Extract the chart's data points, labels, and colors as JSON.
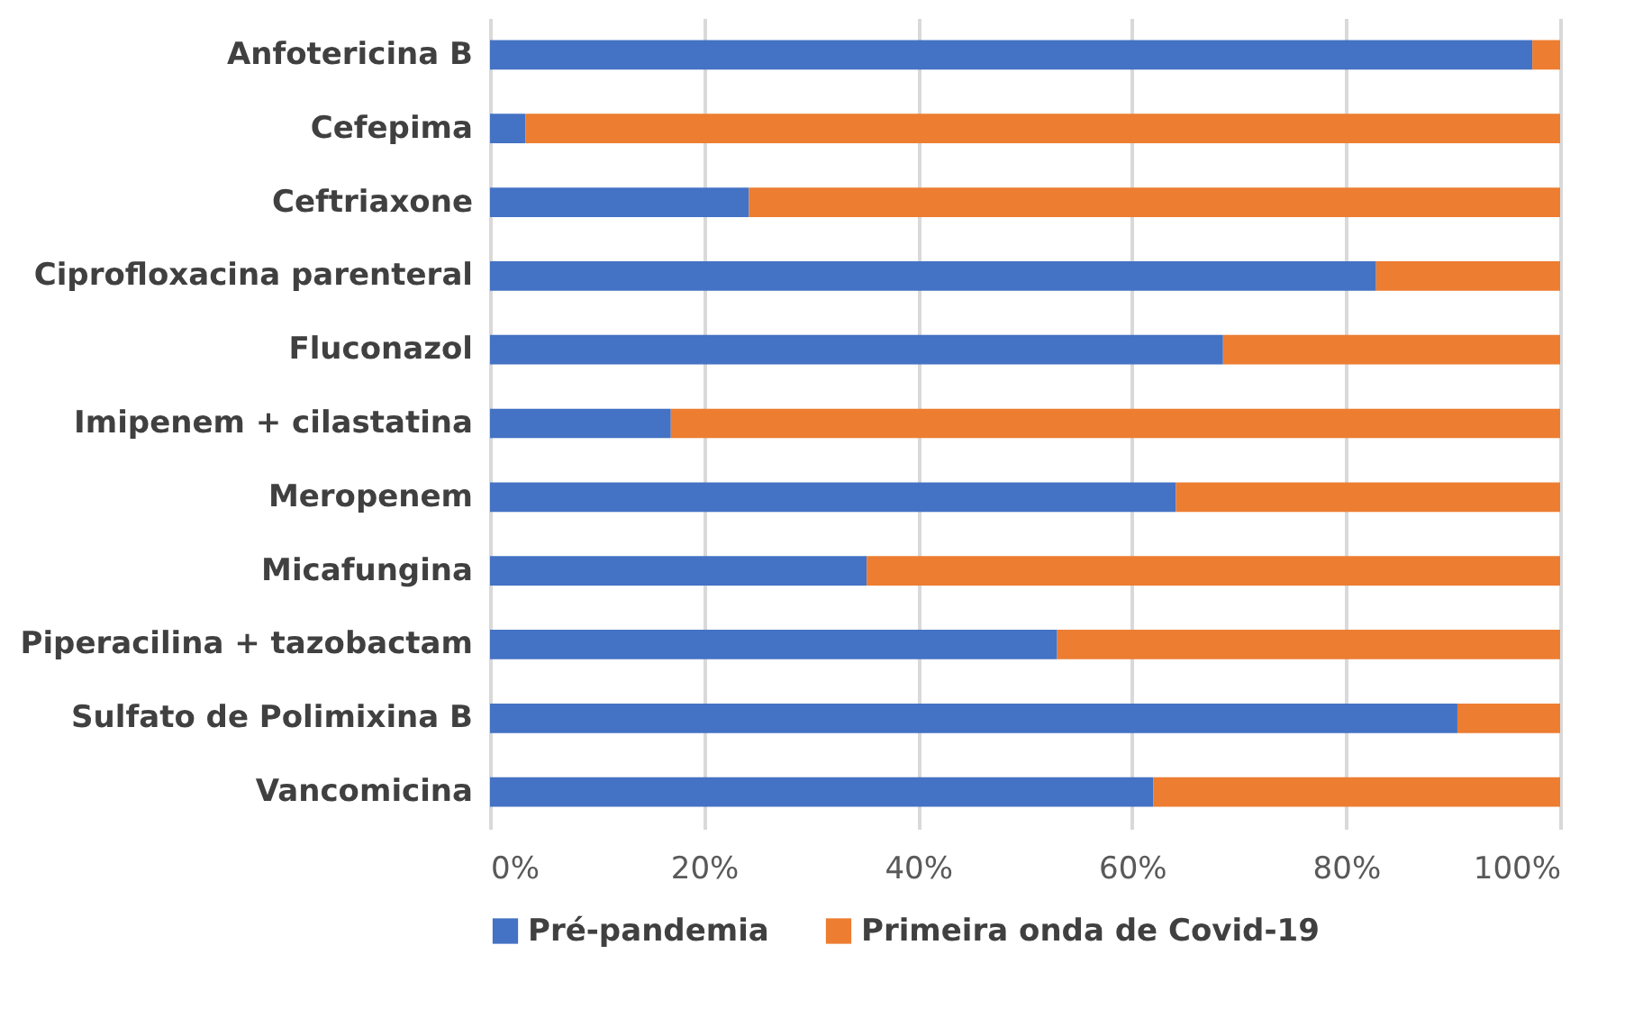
{
  "chart_data": {
    "type": "bar",
    "orientation": "horizontal",
    "stacked": true,
    "categories": [
      "Anfotericina B",
      "Cefepima",
      "Ceftriaxone",
      "Ciprofloxacina parenteral",
      "Fluconazol",
      "Imipenem + cilastatina",
      "Meropenem",
      "Micafungina",
      "Piperacilina + tazobactam",
      "Sulfato de Polimixina B",
      "Vancomicina"
    ],
    "series": [
      {
        "name": "Pré-pandemia",
        "color": "#4472c4",
        "values": [
          97.4,
          3.3,
          24.2,
          82.8,
          68.5,
          16.9,
          64.1,
          35.2,
          53.0,
          90.4,
          62.0
        ]
      },
      {
        "name": "Primeira onda de Covid-19",
        "color": "#ed7d31",
        "values": [
          2.6,
          96.7,
          75.8,
          17.2,
          31.5,
          83.1,
          35.9,
          64.8,
          47.0,
          9.6,
          38.0
        ]
      }
    ],
    "xlim": [
      0,
      100
    ],
    "xticks": [
      {
        "value": 0,
        "label": "0%"
      },
      {
        "value": 20,
        "label": "20%"
      },
      {
        "value": 40,
        "label": "40%"
      },
      {
        "value": 60,
        "label": "60%"
      },
      {
        "value": 80,
        "label": "80%"
      },
      {
        "value": 100,
        "label": "100%"
      }
    ],
    "grid": "x",
    "legend": "bottom"
  }
}
